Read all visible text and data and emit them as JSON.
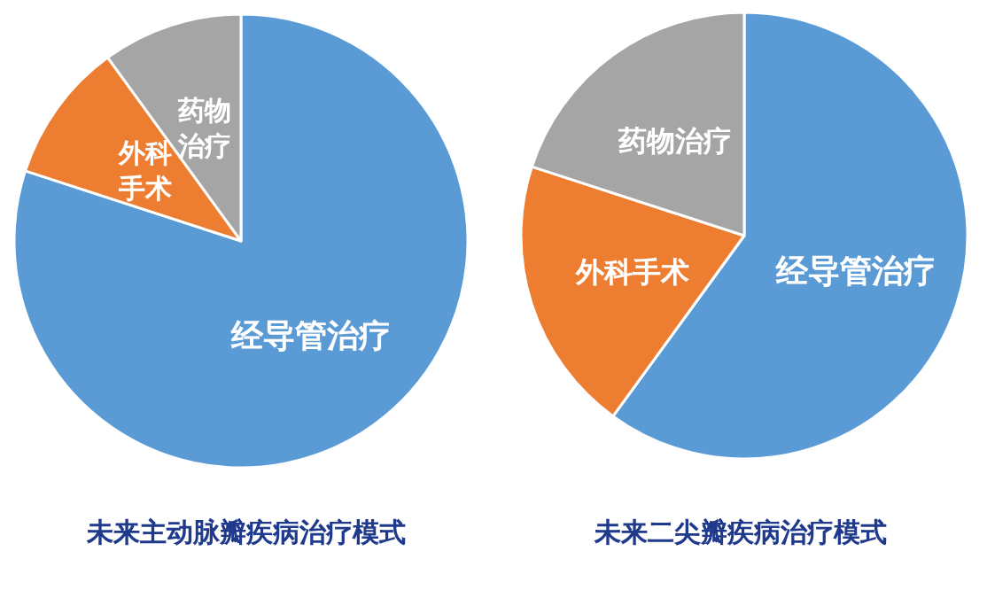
{
  "chart_data": [
    {
      "type": "pie",
      "title": "未来主动脉瓣疾病治疗模式",
      "categories": [
        "经导管治疗",
        "外科手术",
        "药物治疗"
      ],
      "values": [
        80,
        10,
        10
      ],
      "colors": [
        "#5b9bd5",
        "#ed7d31",
        "#a5a5a5"
      ]
    },
    {
      "type": "pie",
      "title": "未来二尖瓣疾病治疗模式",
      "categories": [
        "经导管治疗",
        "外科手术",
        "药物治疗"
      ],
      "values": [
        60,
        20,
        20
      ],
      "colors": [
        "#5b9bd5",
        "#ed7d31",
        "#a5a5a5"
      ]
    }
  ]
}
